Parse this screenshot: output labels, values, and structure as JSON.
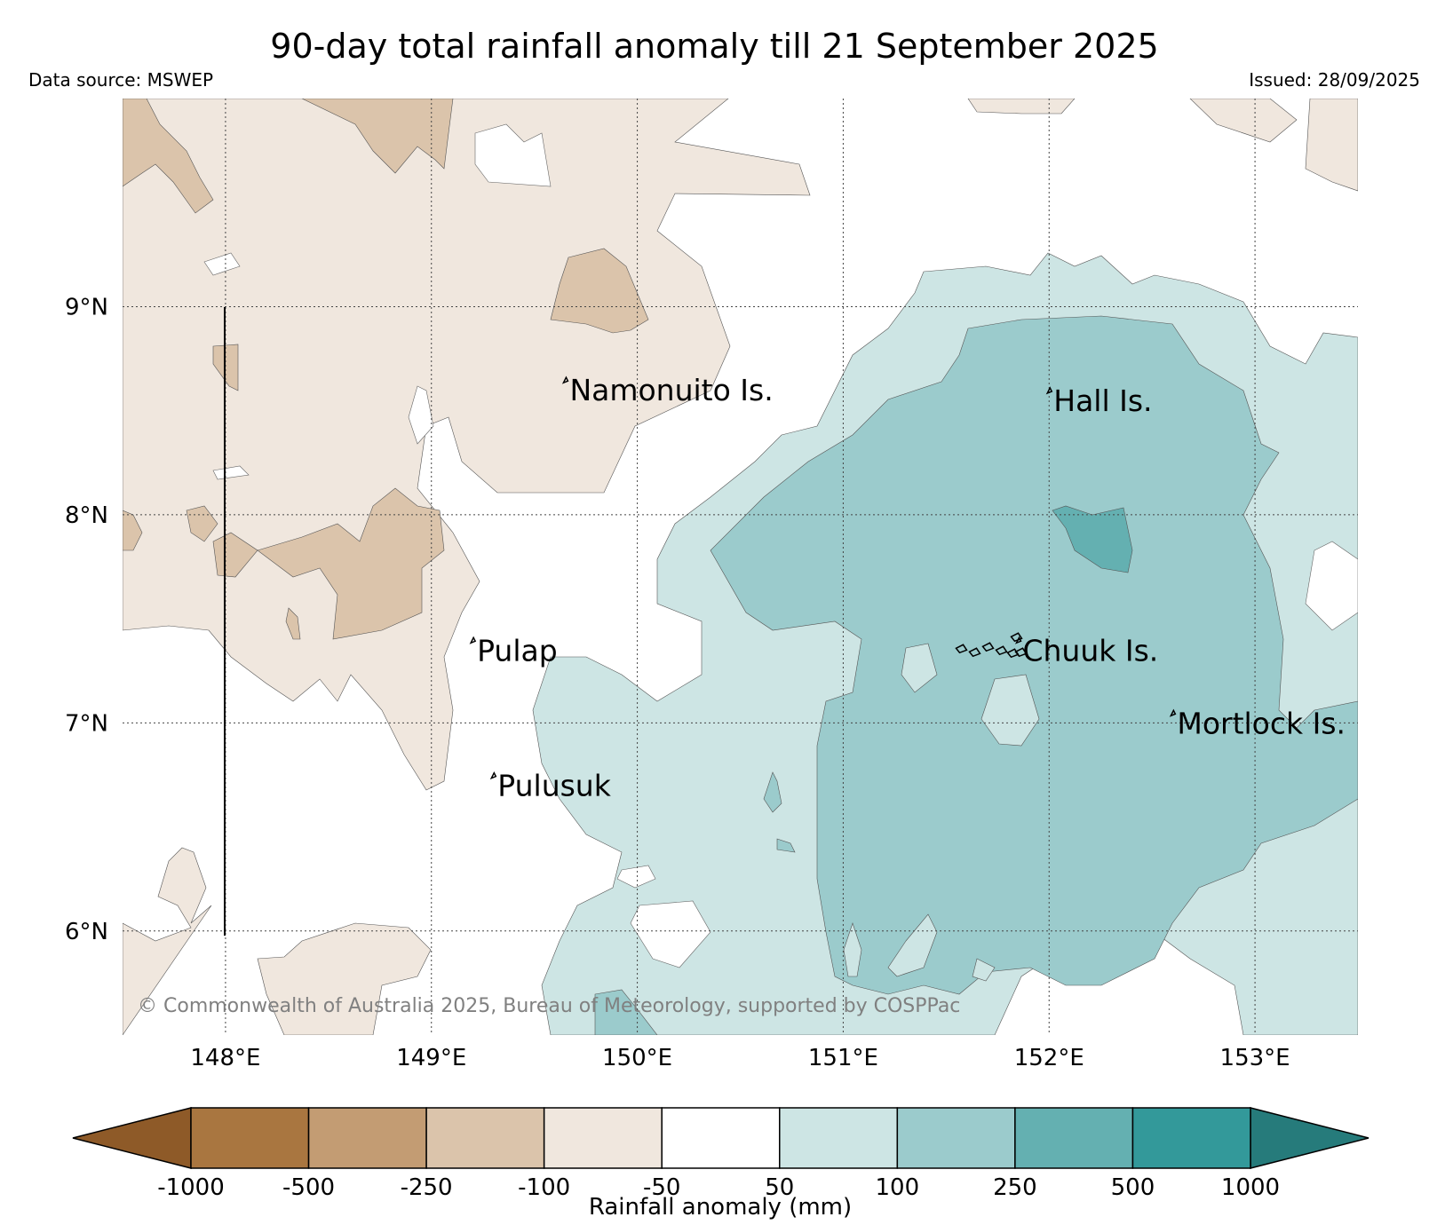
{
  "title": "90-day total rainfall anomaly till 21 September 2025",
  "data_source": "Data source: MSWEP",
  "issued": "Issued: 28/09/2025",
  "copyright": "© Commonwealth of Australia 2025, Bureau of Meteorology, supported by COSPPac",
  "map": {
    "extent": {
      "lon": [
        147.5,
        153.5
      ],
      "lat": [
        5.5,
        10.0
      ]
    },
    "lon_ticks": [
      {
        "value": 148,
        "label": "148°E"
      },
      {
        "value": 149,
        "label": "149°E"
      },
      {
        "value": 150,
        "label": "150°E"
      },
      {
        "value": 151,
        "label": "151°E"
      },
      {
        "value": 152,
        "label": "152°E"
      },
      {
        "value": 153,
        "label": "153°E"
      }
    ],
    "lat_ticks": [
      {
        "value": 9,
        "label": "9°N"
      },
      {
        "value": 8,
        "label": "8°N"
      },
      {
        "value": 7,
        "label": "7°N"
      },
      {
        "value": 6,
        "label": "6°N"
      }
    ],
    "places": [
      {
        "name": "Namonuito Is.",
        "lon": 149.65,
        "lat": 8.6
      },
      {
        "name": "Hall Is.",
        "lon": 152.0,
        "lat": 8.55
      },
      {
        "name": "Pulap",
        "lon": 149.2,
        "lat": 7.35
      },
      {
        "name": "Chuuk Is.",
        "lon": 151.85,
        "lat": 7.35
      },
      {
        "name": "Mortlock Is.",
        "lon": 152.6,
        "lat": 7.0
      },
      {
        "name": "Pulusuk",
        "lon": 149.3,
        "lat": 6.7
      }
    ]
  },
  "colorbar": {
    "label": "Rainfall anomaly (mm)",
    "ticks": [
      "-1000",
      "-500",
      "-250",
      "-100",
      "-50",
      "50",
      "100",
      "250",
      "500",
      "1000"
    ],
    "colors": [
      "#a97640",
      "#c39c73",
      "#dbc4ab",
      "#f0e7de",
      "#ffffff",
      "#cde5e4",
      "#9bcbcc",
      "#64b0b1",
      "#33999a"
    ],
    "under_color": "#8e5a28",
    "over_color": "#267b7b"
  }
}
